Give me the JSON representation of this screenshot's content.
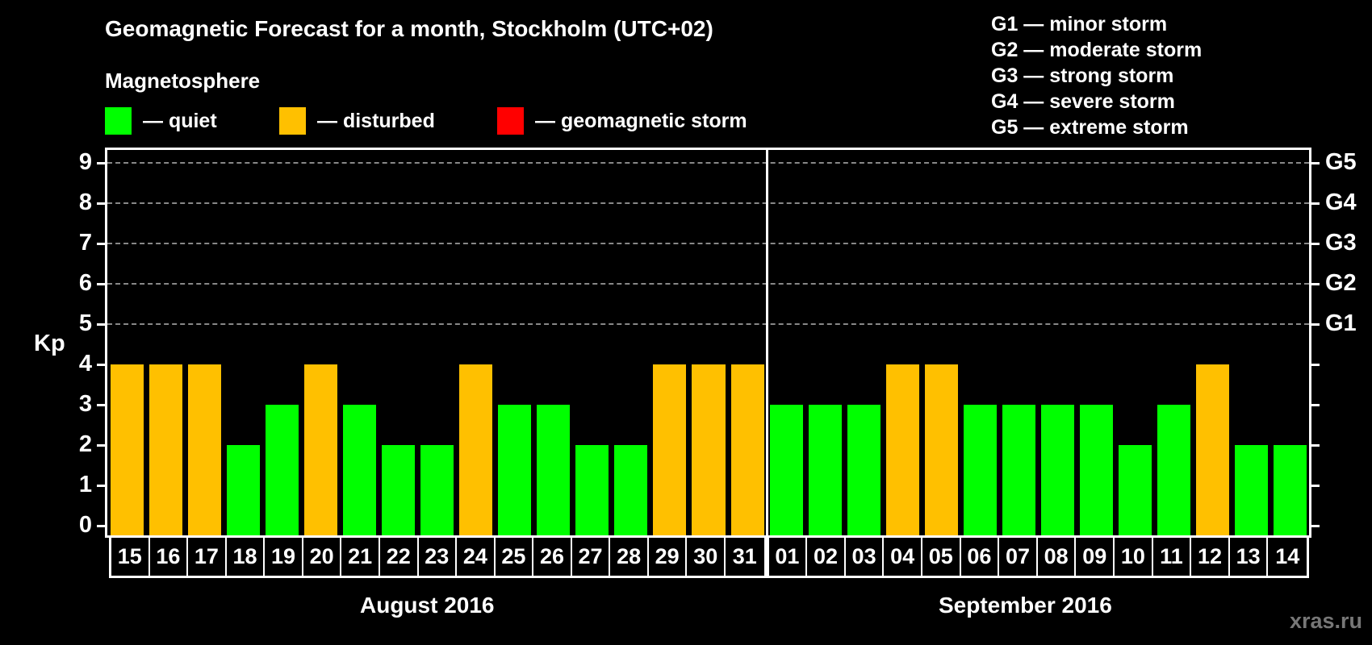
{
  "header": {
    "title": "Geomagnetic Forecast for a month, Stockholm (UTC+02)",
    "subtitle": "Magnetosphere"
  },
  "legend": [
    {
      "label": "— quiet",
      "color": "#00ff00"
    },
    {
      "label": "— disturbed",
      "color": "#ffc000"
    },
    {
      "label": "— geomagnetic storm",
      "color": "#ff0000"
    }
  ],
  "storm_scale": [
    "G1 — minor storm",
    "G2 — moderate storm",
    "G3 — strong storm",
    "G4 — severe storm",
    "G5 — extreme storm"
  ],
  "axis": {
    "ylabel": "Kp",
    "yticks": [
      "0",
      "1",
      "2",
      "3",
      "4",
      "5",
      "6",
      "7",
      "8",
      "9"
    ],
    "right_labels": {
      "5": "G1",
      "6": "G2",
      "7": "G3",
      "8": "G4",
      "9": "G5"
    }
  },
  "months": [
    {
      "label": "August 2016"
    },
    {
      "label": "September 2016"
    }
  ],
  "watermark": "xras.ru",
  "chart_data": {
    "type": "bar",
    "title": "Geomagnetic Forecast for a month, Stockholm (UTC+02)",
    "xlabel": "",
    "ylabel": "Kp",
    "ylim": [
      0,
      9
    ],
    "grid": true,
    "legend_position": "top",
    "categories": [
      "15",
      "16",
      "17",
      "18",
      "19",
      "20",
      "21",
      "22",
      "23",
      "24",
      "25",
      "26",
      "27",
      "28",
      "29",
      "30",
      "31",
      "01",
      "02",
      "03",
      "04",
      "05",
      "06",
      "07",
      "08",
      "09",
      "10",
      "11",
      "12",
      "13",
      "14"
    ],
    "month_groups": [
      {
        "label": "August 2016",
        "days": [
          "15",
          "16",
          "17",
          "18",
          "19",
          "20",
          "21",
          "22",
          "23",
          "24",
          "25",
          "26",
          "27",
          "28",
          "29",
          "30",
          "31"
        ]
      },
      {
        "label": "September 2016",
        "days": [
          "01",
          "02",
          "03",
          "04",
          "05",
          "06",
          "07",
          "08",
          "09",
          "10",
          "11",
          "12",
          "13",
          "14"
        ]
      }
    ],
    "values": [
      4,
      4,
      4,
      2,
      3,
      4,
      3,
      2,
      2,
      4,
      3,
      3,
      2,
      2,
      4,
      4,
      4,
      3,
      3,
      3,
      4,
      4,
      3,
      3,
      3,
      3,
      2,
      3,
      4,
      2,
      2
    ],
    "status": [
      "disturbed",
      "disturbed",
      "disturbed",
      "quiet",
      "quiet",
      "disturbed",
      "quiet",
      "quiet",
      "quiet",
      "disturbed",
      "quiet",
      "quiet",
      "quiet",
      "quiet",
      "disturbed",
      "disturbed",
      "disturbed",
      "quiet",
      "quiet",
      "quiet",
      "disturbed",
      "disturbed",
      "quiet",
      "quiet",
      "quiet",
      "quiet",
      "quiet",
      "quiet",
      "disturbed",
      "quiet",
      "quiet"
    ],
    "status_colors": {
      "quiet": "#00ff00",
      "disturbed": "#ffc000",
      "storm": "#ff0000"
    },
    "right_axis": {
      "5": "G1",
      "6": "G2",
      "7": "G3",
      "8": "G4",
      "9": "G5"
    }
  }
}
